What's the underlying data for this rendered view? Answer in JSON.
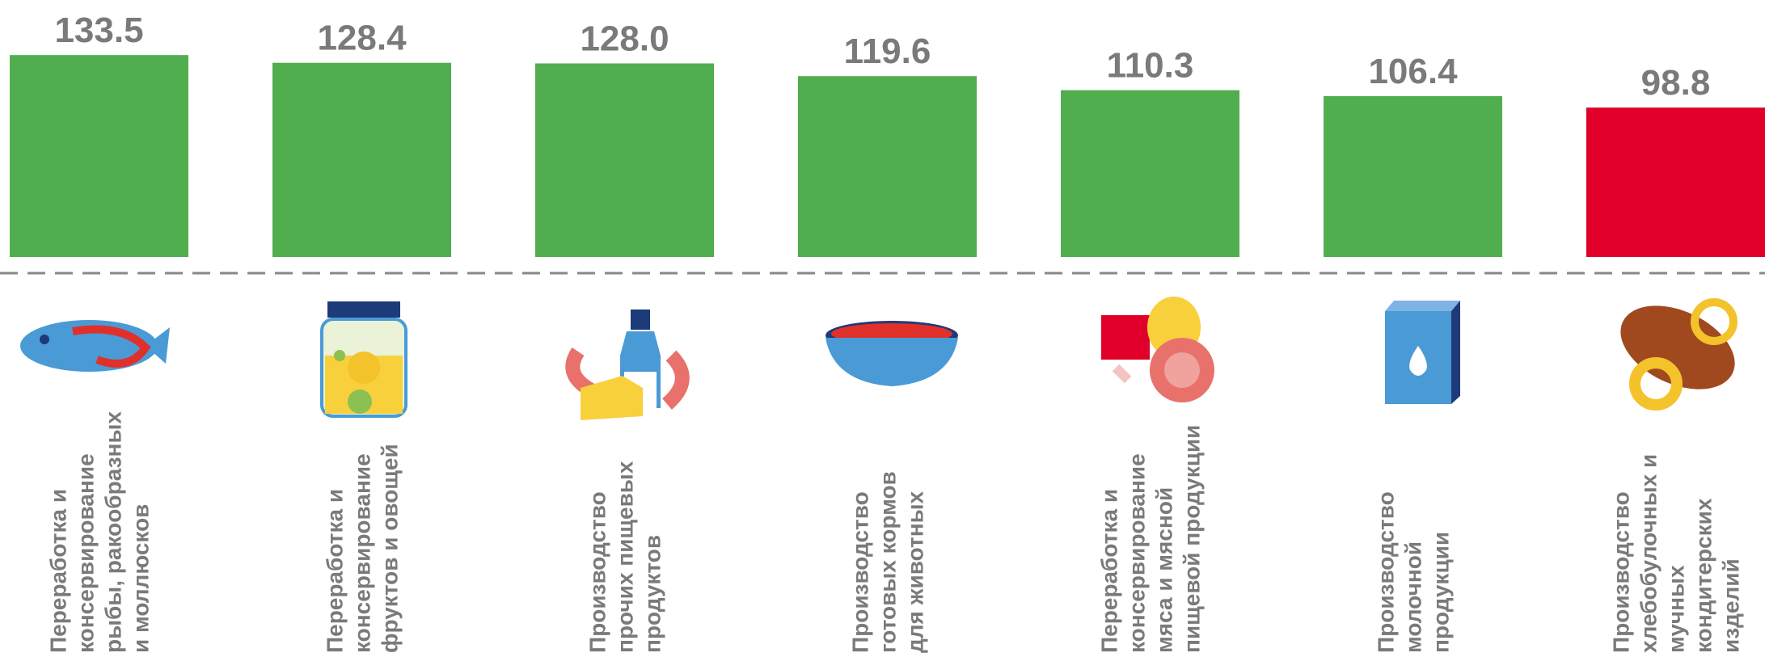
{
  "chart_data": {
    "type": "bar",
    "categories": [
      [
        "Переработка и",
        "консервирование",
        "рыбы, ракообразных",
        "и моллюсков"
      ],
      [
        "Переработка и",
        "консервирование",
        "фруктов и овощей"
      ],
      [
        "Производство",
        "прочих пищевых",
        "продуктов"
      ],
      [
        "Производство",
        "готовых кормов",
        "для животных"
      ],
      [
        "Переработка и",
        "консервирование",
        "мяса и мясной",
        "пищевой продукции"
      ],
      [
        "Производство",
        "молочной",
        "продукции"
      ],
      [
        "Производство",
        "хлебобулочных и",
        "мучных",
        "кондитерских",
        "изделий"
      ]
    ],
    "values": [
      133.5,
      128.4,
      128.0,
      119.6,
      110.3,
      106.4,
      98.8
    ],
    "value_labels": [
      "133.5",
      "128.4",
      "128.0",
      "119.6",
      "110.3",
      "106.4",
      "98.8"
    ],
    "colors": [
      "#50ae4e",
      "#50ae4e",
      "#50ae4e",
      "#50ae4e",
      "#50ae4e",
      "#50ae4e",
      "#e0002a"
    ],
    "ylim": [
      0,
      140
    ]
  }
}
